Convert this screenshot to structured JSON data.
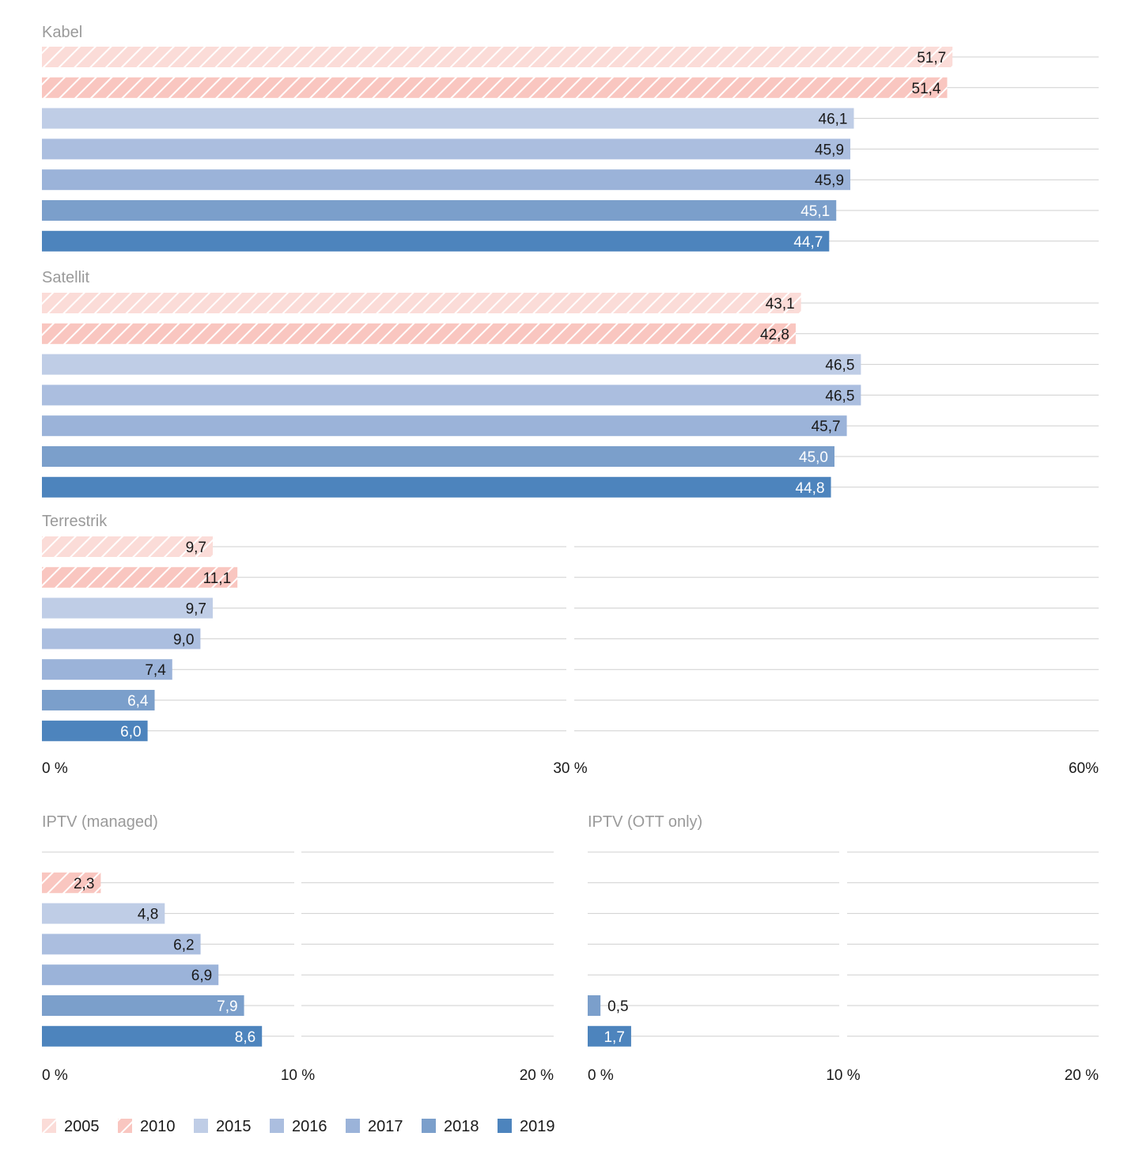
{
  "chart_data": {
    "type": "bar",
    "orientation": "horizontal",
    "years": [
      "2005",
      "2010",
      "2015",
      "2016",
      "2017",
      "2018",
      "2019"
    ],
    "colors": {
      "2005": "#fbdcd8",
      "2010": "#f9c6c0",
      "2015": "#bfcde6",
      "2016": "#abbedf",
      "2017": "#9bb3d9",
      "2018": "#7b9fcb",
      "2019": "#4d84bd"
    },
    "hatched_years": [
      "2005",
      "2010"
    ],
    "label_colors": {
      "2005": "#1a1a1a",
      "2010": "#1a1a1a",
      "2015": "#1a1a1a",
      "2016": "#1a1a1a",
      "2017": "#1a1a1a",
      "2018": "#ffffff",
      "2019": "#ffffff"
    },
    "panels": [
      {
        "name": "Kabel",
        "xlim": [
          0,
          60
        ],
        "bars": [
          {
            "year": "2005",
            "value": 51.7,
            "label": "51,7"
          },
          {
            "year": "2010",
            "value": 51.4,
            "label": "51,4"
          },
          {
            "year": "2015",
            "value": 46.1,
            "label": "46,1"
          },
          {
            "year": "2016",
            "value": 45.9,
            "label": "45,9"
          },
          {
            "year": "2017",
            "value": 45.9,
            "label": "45,9"
          },
          {
            "year": "2018",
            "value": 45.1,
            "label": "45,1"
          },
          {
            "year": "2019",
            "value": 44.7,
            "label": "44,7"
          }
        ]
      },
      {
        "name": "Satellit",
        "xlim": [
          0,
          60
        ],
        "bars": [
          {
            "year": "2005",
            "value": 43.1,
            "label": "43,1"
          },
          {
            "year": "2010",
            "value": 42.8,
            "label": "42,8"
          },
          {
            "year": "2015",
            "value": 46.5,
            "label": "46,5"
          },
          {
            "year": "2016",
            "value": 46.5,
            "label": "46,5"
          },
          {
            "year": "2017",
            "value": 45.7,
            "label": "45,7"
          },
          {
            "year": "2018",
            "value": 45.0,
            "label": "45,0"
          },
          {
            "year": "2019",
            "value": 44.8,
            "label": "44,8"
          }
        ]
      },
      {
        "name": "Terrestrik",
        "xlim": [
          0,
          60
        ],
        "bars": [
          {
            "year": "2005",
            "value": 9.7,
            "label": "9,7"
          },
          {
            "year": "2010",
            "value": 11.1,
            "label": "11,1"
          },
          {
            "year": "2015",
            "value": 9.7,
            "label": "9,7"
          },
          {
            "year": "2016",
            "value": 9.0,
            "label": "9,0"
          },
          {
            "year": "2017",
            "value": 7.4,
            "label": "7,4"
          },
          {
            "year": "2018",
            "value": 6.4,
            "label": "6,4"
          },
          {
            "year": "2019",
            "value": 6.0,
            "label": "6,0"
          }
        ]
      },
      {
        "name": "IPTV (managed)",
        "xlim": [
          0,
          20
        ],
        "bars": [
          {
            "year": "2005",
            "value": null,
            "label": ""
          },
          {
            "year": "2010",
            "value": 2.3,
            "label": "2,3"
          },
          {
            "year": "2015",
            "value": 4.8,
            "label": "4,8"
          },
          {
            "year": "2016",
            "value": 6.2,
            "label": "6,2"
          },
          {
            "year": "2017",
            "value": 6.9,
            "label": "6,9"
          },
          {
            "year": "2018",
            "value": 7.9,
            "label": "7,9"
          },
          {
            "year": "2019",
            "value": 8.6,
            "label": "8,6"
          }
        ]
      },
      {
        "name": "IPTV (OTT only)",
        "xlim": [
          0,
          20
        ],
        "bars": [
          {
            "year": "2005",
            "value": null,
            "label": ""
          },
          {
            "year": "2010",
            "value": null,
            "label": ""
          },
          {
            "year": "2015",
            "value": null,
            "label": ""
          },
          {
            "year": "2016",
            "value": null,
            "label": ""
          },
          {
            "year": "2017",
            "value": null,
            "label": ""
          },
          {
            "year": "2018",
            "value": 0.5,
            "label": "0,5"
          },
          {
            "year": "2019",
            "value": 1.7,
            "label": "1,7"
          }
        ]
      }
    ],
    "axes": [
      {
        "id": "top",
        "ticks": [
          {
            "value": 0,
            "label": "0 %"
          },
          {
            "value": 30,
            "label": "30 %"
          },
          {
            "value": 60,
            "label": "60%"
          }
        ]
      },
      {
        "id": "bottom-left",
        "ticks": [
          {
            "value": 0,
            "label": "0 %"
          },
          {
            "value": 10,
            "label": "10 %"
          },
          {
            "value": 20,
            "label": "20 %"
          }
        ]
      },
      {
        "id": "bottom-right",
        "ticks": [
          {
            "value": 0,
            "label": "0 %"
          },
          {
            "value": 10,
            "label": "10 %"
          },
          {
            "value": 20,
            "label": "20 %"
          }
        ]
      }
    ],
    "legend": {
      "placement": "bottom-left",
      "entries": [
        "2005",
        "2010",
        "2015",
        "2016",
        "2017",
        "2018",
        "2019"
      ]
    },
    "grid": true
  }
}
